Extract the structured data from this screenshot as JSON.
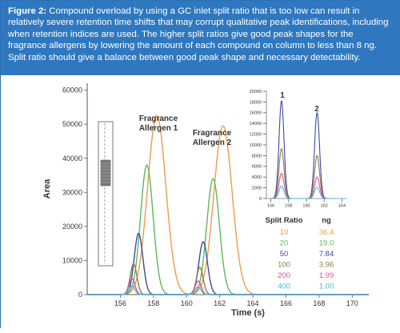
{
  "caption": {
    "label": "Figure 2:",
    "text": "Compound overload by using a GC inlet split ratio that is too low can result in relatively severe retention time shifts that may corrupt qualitative peak identifications, including when retention indices are used. The higher split ratios give good peak shapes for the fragrance allergens by lowering the amount of each compound on column to less than 8 ng. Split ratio should give a balance between good peak shape and necessary detectability."
  },
  "chart_data": [
    {
      "type": "line",
      "xlabel": "Time (s)",
      "ylabel": "Area",
      "xlim": [
        154,
        171
      ],
      "ylim": [
        0,
        62000
      ],
      "xticks": [
        "156",
        "158",
        "160",
        "162",
        "164",
        "166",
        "168",
        "170"
      ],
      "yticks": [
        "0",
        "10000",
        "20000",
        "30000",
        "40000",
        "50000",
        "60000"
      ],
      "annotations": [
        "Fragrance Allergen 1",
        "Fragrance Allergen 2"
      ],
      "series": [
        {
          "name": "10",
          "color": "#f39a4c",
          "peaks": [
            {
              "x": 158.2,
              "height": 52500,
              "width": 0.55
            },
            {
              "x": 162.2,
              "height": 49500,
              "width": 0.55
            }
          ]
        },
        {
          "name": "20",
          "color": "#5cb85c",
          "peaks": [
            {
              "x": 157.6,
              "height": 38000,
              "width": 0.38
            },
            {
              "x": 161.6,
              "height": 34000,
              "width": 0.38
            }
          ]
        },
        {
          "name": "50",
          "color": "#3c4a9e",
          "peaks": [
            {
              "x": 157.1,
              "height": 18000,
              "width": 0.26
            },
            {
              "x": 161.0,
              "height": 15500,
              "width": 0.26
            }
          ]
        },
        {
          "name": "100",
          "color": "#8c7a4a",
          "peaks": [
            {
              "x": 156.8,
              "height": 9000,
              "width": 0.2
            },
            {
              "x": 160.8,
              "height": 8000,
              "width": 0.2
            }
          ]
        },
        {
          "name": "200",
          "color": "#e0519a",
          "peaks": [
            {
              "x": 156.7,
              "height": 4700,
              "width": 0.18
            },
            {
              "x": 160.7,
              "height": 4000,
              "width": 0.18
            }
          ]
        },
        {
          "name": "400",
          "color": "#4fb6d9",
          "peaks": [
            {
              "x": 156.7,
              "height": 2600,
              "width": 0.17
            },
            {
              "x": 160.7,
              "height": 2300,
              "width": 0.17
            }
          ]
        }
      ]
    },
    {
      "type": "line",
      "xlim": [
        155.5,
        164.5
      ],
      "ylim": [
        0,
        20000
      ],
      "xticks": [
        "156",
        "158",
        "160",
        "162",
        "164"
      ],
      "yticks": [
        "0",
        "2000",
        "4000",
        "6000",
        "8000",
        "10000",
        "12000",
        "14000",
        "16000",
        "18000",
        "20000"
      ],
      "annotations": [
        "1",
        "2"
      ],
      "series": [
        {
          "name": "50",
          "color": "#3c4a9e",
          "peaks": [
            {
              "x": 157.2,
              "height": 18200,
              "width": 0.28
            },
            {
              "x": 161.2,
              "height": 16000,
              "width": 0.28
            }
          ]
        },
        {
          "name": "100",
          "color": "#8c7a4a",
          "peaks": [
            {
              "x": 157.2,
              "height": 9300,
              "width": 0.28
            },
            {
              "x": 161.2,
              "height": 8000,
              "width": 0.28
            }
          ]
        },
        {
          "name": "200",
          "color": "#e0519a",
          "peaks": [
            {
              "x": 157.2,
              "height": 4700,
              "width": 0.28
            },
            {
              "x": 161.2,
              "height": 4000,
              "width": 0.28
            }
          ]
        },
        {
          "name": "400",
          "color": "#4fb6d9",
          "peaks": [
            {
              "x": 157.2,
              "height": 2300,
              "width": 0.28
            },
            {
              "x": 161.2,
              "height": 2100,
              "width": 0.28
            }
          ]
        }
      ]
    }
  ],
  "legend_table": {
    "header_ratio": "Split Ratio",
    "header_ng": "ng",
    "rows": [
      {
        "ratio": "10",
        "ng": "36.4",
        "color": "#f39a4c"
      },
      {
        "ratio": "20",
        "ng": "19.0",
        "color": "#5cb85c"
      },
      {
        "ratio": "50",
        "ng": "7.84",
        "color": "#3c4a9e"
      },
      {
        "ratio": "100",
        "ng": "3.96",
        "color": "#8c7a4a"
      },
      {
        "ratio": "200",
        "ng": "1.99",
        "color": "#e0519a"
      },
      {
        "ratio": "400",
        "ng": "1.00",
        "color": "#4fb6d9"
      }
    ]
  },
  "colors": {
    "caption_bg": "#2f78bf",
    "axis": "#555555",
    "liner_fill": "#7a7a7a"
  }
}
